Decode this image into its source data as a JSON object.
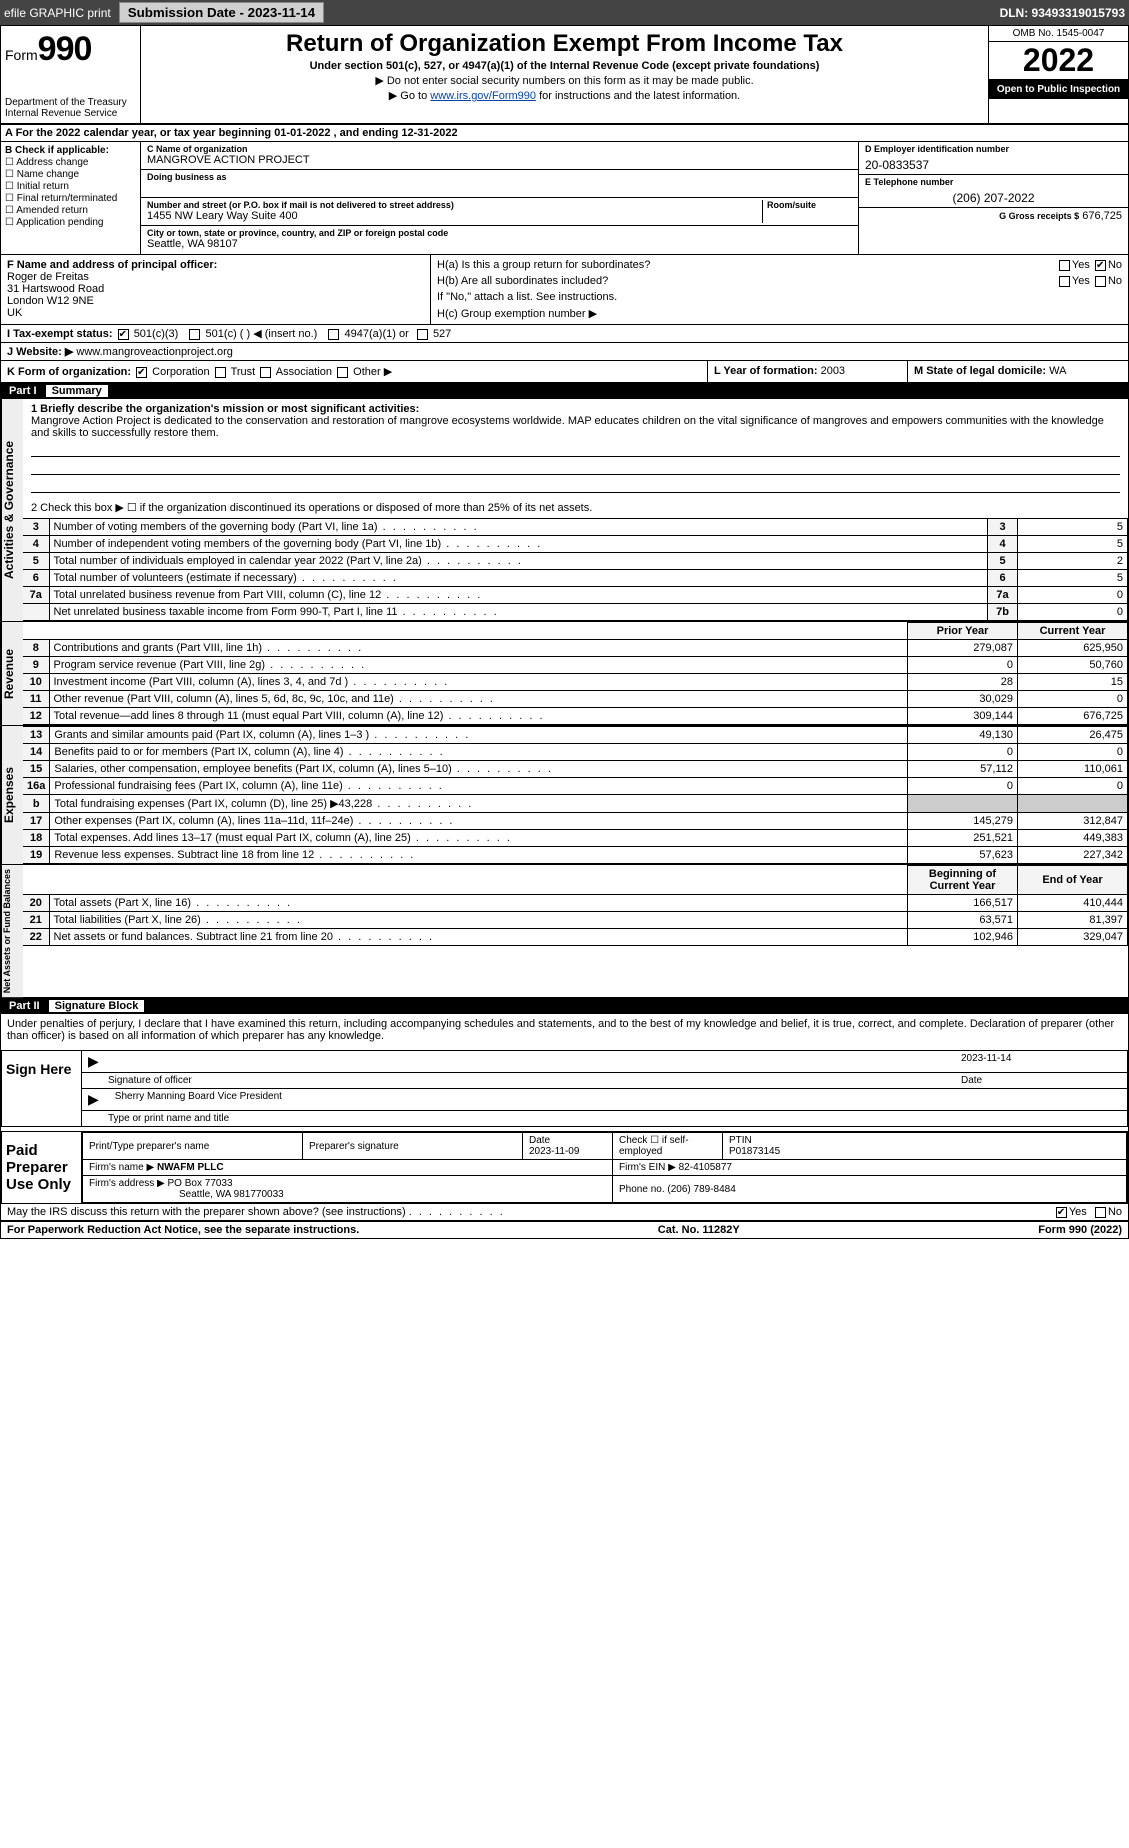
{
  "topbar": {
    "efile": "efile GRAPHIC print",
    "submission_btn": "Submission Date - 2023-11-14",
    "dln": "DLN: 93493319015793"
  },
  "header": {
    "form_label": "Form",
    "form_number": "990",
    "dept": "Department of the Treasury",
    "irs": "Internal Revenue Service",
    "title": "Return of Organization Exempt From Income Tax",
    "subtitle": "Under section 501(c), 527, or 4947(a)(1) of the Internal Revenue Code (except private foundations)",
    "note1": "▶ Do not enter social security numbers on this form as it may be made public.",
    "note2_pre": "▶ Go to ",
    "note2_link": "www.irs.gov/Form990",
    "note2_post": " for instructions and the latest information.",
    "omb": "OMB No. 1545-0047",
    "year": "2022",
    "open": "Open to Public Inspection"
  },
  "a_line": "A For the 2022 calendar year, or tax year beginning 01-01-2022   , and ending 12-31-2022",
  "sectionB": {
    "heading": "B Check if applicable:",
    "opts": [
      "☐ Address change",
      "☐ Name change",
      "☐ Initial return",
      "☐ Final return/terminated",
      "☐ Amended return",
      "☐ Application pending"
    ]
  },
  "sectionC": {
    "name_lbl": "C Name of organization",
    "name_val": "MANGROVE ACTION PROJECT",
    "dba_lbl": "Doing business as",
    "street_lbl": "Number and street (or P.O. box if mail is not delivered to street address)",
    "room_lbl": "Room/suite",
    "street_val": "1455 NW Leary Way Suite 400",
    "city_lbl": "City or town, state or province, country, and ZIP or foreign postal code",
    "city_val": "Seattle, WA  98107"
  },
  "sectionD": {
    "lbl": "D Employer identification number",
    "val": "20-0833537"
  },
  "sectionE": {
    "lbl": "E Telephone number",
    "val": "(206) 207-2022"
  },
  "sectionG": {
    "lbl": "G Gross receipts $",
    "val": "676,725"
  },
  "sectionF": {
    "lbl": "F  Name and address of principal officer:",
    "name": "Roger de Freitas",
    "addr1": "31 Hartswood Road",
    "addr2": "London    W12 9NE",
    "addr3": "UK"
  },
  "sectionH": {
    "ha": "H(a)  Is this a group return for subordinates?",
    "ha_yes": "Yes",
    "ha_no": "No",
    "hb": "H(b)  Are all subordinates included?",
    "hb_yes": "Yes",
    "hb_no": "No",
    "hb_note": "If \"No,\" attach a list. See instructions.",
    "hc": "H(c)  Group exemption number ▶"
  },
  "sectionI": {
    "lbl": "I   Tax-exempt status:",
    "o1": "501(c)(3)",
    "o2": "501(c) (  ) ◀ (insert no.)",
    "o3": "4947(a)(1) or",
    "o4": "527"
  },
  "sectionJ": {
    "lbl": "J  Website: ▶",
    "val": "www.mangroveactionproject.org"
  },
  "sectionK": {
    "lbl": "K Form of organization:",
    "o1": "Corporation",
    "o2": "Trust",
    "o3": "Association",
    "o4": "Other ▶"
  },
  "sectionL": {
    "lbl": "L Year of formation:",
    "val": "2003"
  },
  "sectionM": {
    "lbl": "M State of legal domicile:",
    "val": "WA"
  },
  "part1": {
    "hdr": "Part I",
    "title": "Summary",
    "line1_lbl": "1  Briefly describe the organization's mission or most significant activities:",
    "line1_val": "Mangrove Action Project is dedicated to the conservation and restoration of mangrove ecosystems worldwide. MAP educates children on the vital significance of mangroves and empowers communities with the knowledge and skills to successfully restore them.",
    "line2": "2  Check this box ▶ ☐  if the organization discontinued its operations or disposed of more than 25% of its net assets.",
    "gov_rows": [
      {
        "n": "3",
        "d": "Number of voting members of the governing body (Part VI, line 1a)",
        "box": "3",
        "v": "5"
      },
      {
        "n": "4",
        "d": "Number of independent voting members of the governing body (Part VI, line 1b)",
        "box": "4",
        "v": "5"
      },
      {
        "n": "5",
        "d": "Total number of individuals employed in calendar year 2022 (Part V, line 2a)",
        "box": "5",
        "v": "2"
      },
      {
        "n": "6",
        "d": "Total number of volunteers (estimate if necessary)",
        "box": "6",
        "v": "5"
      },
      {
        "n": "7a",
        "d": "Total unrelated business revenue from Part VIII, column (C), line 12",
        "box": "7a",
        "v": "0"
      },
      {
        "n": "",
        "d": "Net unrelated business taxable income from Form 990-T, Part I, line 11",
        "box": "7b",
        "v": "0"
      }
    ],
    "year_hdr_prior": "Prior Year",
    "year_hdr_curr": "Current Year",
    "revenue_rows": [
      {
        "n": "8",
        "d": "Contributions and grants (Part VIII, line 1h)",
        "p": "279,087",
        "c": "625,950"
      },
      {
        "n": "9",
        "d": "Program service revenue (Part VIII, line 2g)",
        "p": "0",
        "c": "50,760"
      },
      {
        "n": "10",
        "d": "Investment income (Part VIII, column (A), lines 3, 4, and 7d )",
        "p": "28",
        "c": "15"
      },
      {
        "n": "11",
        "d": "Other revenue (Part VIII, column (A), lines 5, 6d, 8c, 9c, 10c, and 11e)",
        "p": "30,029",
        "c": "0"
      },
      {
        "n": "12",
        "d": "Total revenue—add lines 8 through 11 (must equal Part VIII, column (A), line 12)",
        "p": "309,144",
        "c": "676,725"
      }
    ],
    "expense_rows": [
      {
        "n": "13",
        "d": "Grants and similar amounts paid (Part IX, column (A), lines 1–3 )",
        "p": "49,130",
        "c": "26,475"
      },
      {
        "n": "14",
        "d": "Benefits paid to or for members (Part IX, column (A), line 4)",
        "p": "0",
        "c": "0"
      },
      {
        "n": "15",
        "d": "Salaries, other compensation, employee benefits (Part IX, column (A), lines 5–10)",
        "p": "57,112",
        "c": "110,061"
      },
      {
        "n": "16a",
        "d": "Professional fundraising fees (Part IX, column (A), line 11e)",
        "p": "0",
        "c": "0"
      },
      {
        "n": "b",
        "d": "Total fundraising expenses (Part IX, column (D), line 25) ▶43,228",
        "p": "",
        "c": "",
        "gray": true
      },
      {
        "n": "17",
        "d": "Other expenses (Part IX, column (A), lines 11a–11d, 11f–24e)",
        "p": "145,279",
        "c": "312,847"
      },
      {
        "n": "18",
        "d": "Total expenses. Add lines 13–17 (must equal Part IX, column (A), line 25)",
        "p": "251,521",
        "c": "449,383"
      },
      {
        "n": "19",
        "d": "Revenue less expenses. Subtract line 18 from line 12",
        "p": "57,623",
        "c": "227,342"
      }
    ],
    "net_hdr_beg": "Beginning of Current Year",
    "net_hdr_end": "End of Year",
    "net_rows": [
      {
        "n": "20",
        "d": "Total assets (Part X, line 16)",
        "p": "166,517",
        "c": "410,444"
      },
      {
        "n": "21",
        "d": "Total liabilities (Part X, line 26)",
        "p": "63,571",
        "c": "81,397"
      },
      {
        "n": "22",
        "d": "Net assets or fund balances. Subtract line 21 from line 20",
        "p": "102,946",
        "c": "329,047"
      }
    ],
    "vtab_gov": "Activities & Governance",
    "vtab_rev": "Revenue",
    "vtab_exp": "Expenses",
    "vtab_net": "Net Assets or Fund Balances"
  },
  "part2": {
    "hdr": "Part II",
    "title": "Signature Block",
    "penalty": "Under penalties of perjury, I declare that I have examined this return, including accompanying schedules and statements, and to the best of my knowledge and belief, it is true, correct, and complete. Declaration of preparer (other than officer) is based on all information of which preparer has any knowledge.",
    "sign_here": "Sign Here",
    "sig_officer": "Signature of officer",
    "sig_date": "2023-11-14",
    "date_lbl": "Date",
    "typed_name": "Sherry Manning  Board Vice President",
    "typed_lbl": "Type or print name and title",
    "paid_lbl": "Paid Preparer Use Only",
    "prep_name_lbl": "Print/Type preparer's name",
    "prep_sig_lbl": "Preparer's signature",
    "prep_date_lbl": "Date",
    "prep_date": "2023-11-09",
    "self_emp": "Check ☐ if self-employed",
    "ptin_lbl": "PTIN",
    "ptin": "P01873145",
    "firm_name_lbl": "Firm's name    ▶",
    "firm_name": "NWAFM PLLC",
    "firm_ein_lbl": "Firm's EIN ▶",
    "firm_ein": "82-4105877",
    "firm_addr_lbl": "Firm's address ▶",
    "firm_addr1": "PO Box 77033",
    "firm_addr2": "Seattle, WA  981770033",
    "firm_phone_lbl": "Phone no.",
    "firm_phone": "(206) 789-8484",
    "may_discuss": "May the IRS discuss this return with the preparer shown above? (see instructions)",
    "may_yes": "Yes",
    "may_no": "No"
  },
  "footer": {
    "pra": "For Paperwork Reduction Act Notice, see the separate instructions.",
    "cat": "Cat. No. 11282Y",
    "form": "Form 990 (2022)"
  },
  "colors": {
    "link": "#0645ad",
    "black": "#000000",
    "gray_fill": "#cccccc",
    "header_bg": "#444444"
  }
}
